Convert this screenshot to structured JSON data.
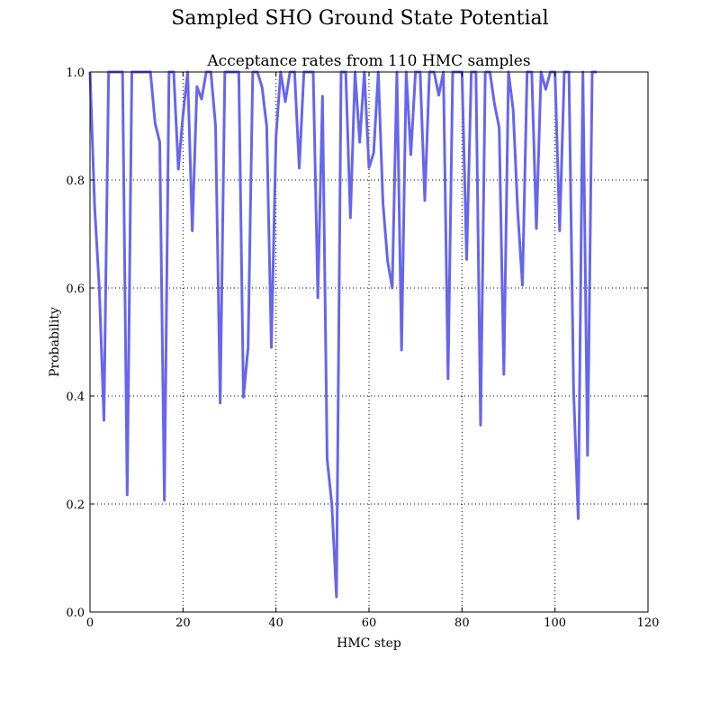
{
  "figure": {
    "suptitle": "Sampled SHO Ground State Potential"
  },
  "chart_data": {
    "type": "line",
    "title": "Acceptance rates from 110 HMC samples",
    "xlabel": "HMC step",
    "ylabel": "Probability",
    "xlim": [
      0,
      120
    ],
    "ylim": [
      0.0,
      1.0
    ],
    "xticks": [
      0,
      20,
      40,
      60,
      80,
      100,
      120
    ],
    "yticks": [
      0.0,
      0.2,
      0.4,
      0.6,
      0.8,
      1.0
    ],
    "xtick_labels": [
      "0",
      "20",
      "40",
      "60",
      "80",
      "100",
      "120"
    ],
    "ytick_labels": [
      "0.0",
      "0.2",
      "0.4",
      "0.6",
      "0.8",
      "1.0"
    ],
    "grid": true,
    "line_color": "#6666ee",
    "series": [
      {
        "x": [
          0,
          1,
          2,
          3,
          4,
          5,
          6,
          7,
          8,
          9,
          10,
          11,
          12,
          13,
          14,
          15,
          16,
          17,
          18,
          19,
          20,
          21,
          22,
          23,
          24,
          25,
          26,
          27,
          28,
          29,
          30,
          31,
          32,
          33,
          34,
          35,
          36,
          37,
          38,
          39,
          40,
          41,
          42,
          43,
          44,
          45,
          46,
          47,
          48,
          49,
          50,
          51,
          52,
          53,
          54,
          55,
          56,
          57,
          58,
          59,
          60,
          61,
          62,
          63,
          64,
          65,
          66,
          67,
          68,
          69,
          70,
          71,
          72,
          73,
          74,
          75,
          76,
          77,
          78,
          79,
          80,
          81,
          82,
          83,
          84,
          85,
          86,
          87,
          88,
          89,
          90,
          91,
          92,
          93,
          94,
          95,
          96,
          97,
          98,
          99,
          100,
          101,
          102,
          103,
          104,
          105,
          106,
          107,
          108,
          109
        ],
        "values": [
          1.0,
          0.75,
          0.6,
          0.355,
          1.0,
          1.0,
          1.0,
          1.0,
          0.217,
          1.0,
          1.0,
          1.0,
          1.0,
          1.0,
          0.905,
          0.87,
          0.207,
          1.0,
          1.0,
          0.82,
          0.92,
          1.0,
          0.706,
          0.973,
          0.95,
          1.0,
          1.0,
          0.9,
          0.387,
          1.0,
          1.0,
          1.0,
          1.0,
          0.398,
          0.49,
          1.0,
          1.0,
          0.972,
          0.9,
          0.49,
          0.88,
          1.0,
          0.945,
          1.0,
          1.0,
          0.822,
          1.0,
          1.0,
          1.0,
          0.582,
          0.955,
          0.283,
          0.2,
          0.028,
          1.0,
          1.0,
          0.73,
          1.0,
          0.87,
          1.0,
          0.823,
          0.85,
          1.0,
          0.758,
          0.65,
          0.6,
          1.0,
          0.485,
          1.0,
          0.847,
          1.0,
          1.0,
          0.762,
          1.0,
          1.0,
          0.957,
          1.0,
          0.432,
          1.0,
          1.0,
          1.0,
          0.653,
          1.0,
          1.0,
          0.346,
          1.0,
          1.0,
          0.94,
          0.897,
          0.44,
          1.0,
          0.93,
          0.74,
          0.605,
          1.0,
          1.0,
          0.71,
          1.0,
          0.968,
          1.0,
          1.0,
          0.706,
          1.0,
          1.0,
          0.41,
          0.173,
          1.0,
          0.29,
          1.0,
          1.0
        ]
      }
    ]
  }
}
